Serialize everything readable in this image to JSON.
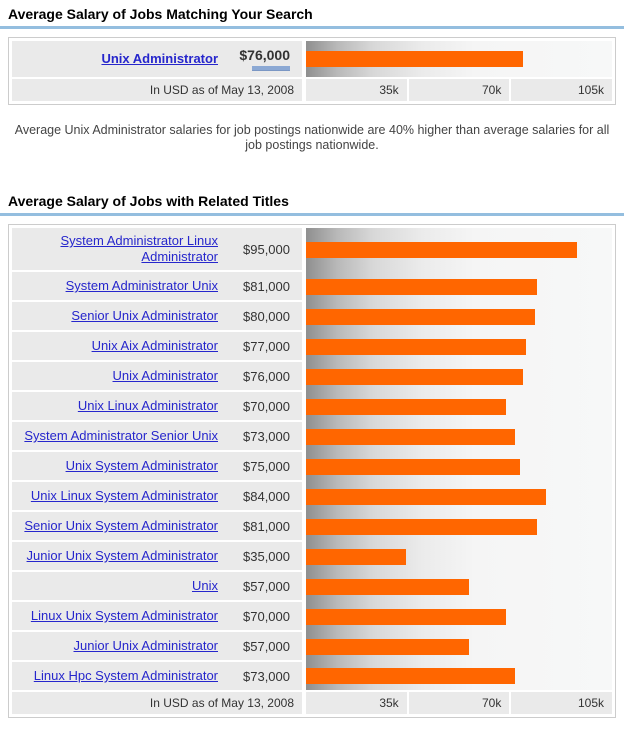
{
  "colors": {
    "bar_orange": "#ff6600",
    "title_rule_blue": "#94bedf",
    "link_blue": "#2626cc",
    "slider_blue": "#8ca9d4",
    "row_gray": "#eaeaea"
  },
  "section_matching": {
    "title": "Average Salary of Jobs Matching Your Search",
    "rows": [
      {
        "label": "Unix Administrator",
        "salary": "$76,000",
        "value": 76000,
        "selected": true
      }
    ],
    "footer_note": "In USD as of May 13, 2008",
    "axis_ticks": [
      "35k",
      "70k",
      "105k"
    ],
    "axis_max": 105000
  },
  "summary_text": "Average Unix Administrator salaries for job postings nationwide are 40% higher than average salaries for all job postings nationwide.",
  "section_related": {
    "title": "Average Salary of Jobs with Related Titles",
    "rows": [
      {
        "label": "System Administrator Linux Administrator",
        "salary": "$95,000",
        "value": 95000
      },
      {
        "label": "System Administrator Unix",
        "salary": "$81,000",
        "value": 81000
      },
      {
        "label": "Senior Unix Administrator",
        "salary": "$80,000",
        "value": 80000
      },
      {
        "label": "Unix Aix Administrator",
        "salary": "$77,000",
        "value": 77000
      },
      {
        "label": "Unix Administrator",
        "salary": "$76,000",
        "value": 76000
      },
      {
        "label": "Unix Linux Administrator",
        "salary": "$70,000",
        "value": 70000
      },
      {
        "label": "System Administrator Senior Unix",
        "salary": "$73,000",
        "value": 73000
      },
      {
        "label": "Unix System Administrator",
        "salary": "$75,000",
        "value": 75000
      },
      {
        "label": "Unix Linux System Administrator",
        "salary": "$84,000",
        "value": 84000
      },
      {
        "label": "Senior Unix System Administrator",
        "salary": "$81,000",
        "value": 81000
      },
      {
        "label": "Junior Unix System Administrator",
        "salary": "$35,000",
        "value": 35000
      },
      {
        "label": "Unix",
        "salary": "$57,000",
        "value": 57000
      },
      {
        "label": "Linux Unix System Administrator",
        "salary": "$70,000",
        "value": 70000
      },
      {
        "label": "Junior Unix Administrator",
        "salary": "$57,000",
        "value": 57000
      },
      {
        "label": "Linux Hpc System Administrator",
        "salary": "$73,000",
        "value": 73000
      }
    ],
    "footer_note": "In USD as of May 13, 2008",
    "axis_ticks": [
      "35k",
      "70k",
      "105k"
    ],
    "axis_max": 105000
  },
  "chart_data": [
    {
      "type": "bar",
      "orientation": "horizontal",
      "title": "Average Salary of Jobs Matching Your Search",
      "categories": [
        "Unix Administrator"
      ],
      "values": [
        76000
      ],
      "xlabel": "In USD as of May 13, 2008",
      "ylabel": "",
      "xlim": [
        0,
        105000
      ],
      "xticks": [
        "35k",
        "70k",
        "105k"
      ],
      "bar_color": "#ff6600",
      "grid": false,
      "legend": false
    },
    {
      "type": "bar",
      "orientation": "horizontal",
      "title": "Average Salary of Jobs with Related Titles",
      "categories": [
        "System Administrator Linux Administrator",
        "System Administrator Unix",
        "Senior Unix Administrator",
        "Unix Aix Administrator",
        "Unix Administrator",
        "Unix Linux Administrator",
        "System Administrator Senior Unix",
        "Unix System Administrator",
        "Unix Linux System Administrator",
        "Senior Unix System Administrator",
        "Junior Unix System Administrator",
        "Unix",
        "Linux Unix System Administrator",
        "Junior Unix Administrator",
        "Linux Hpc System Administrator"
      ],
      "values": [
        95000,
        81000,
        80000,
        77000,
        76000,
        70000,
        73000,
        75000,
        84000,
        81000,
        35000,
        57000,
        70000,
        57000,
        73000
      ],
      "xlabel": "In USD as of May 13, 2008",
      "ylabel": "",
      "xlim": [
        0,
        105000
      ],
      "xticks": [
        "35k",
        "70k",
        "105k"
      ],
      "bar_color": "#ff6600",
      "grid": false,
      "legend": false
    }
  ]
}
